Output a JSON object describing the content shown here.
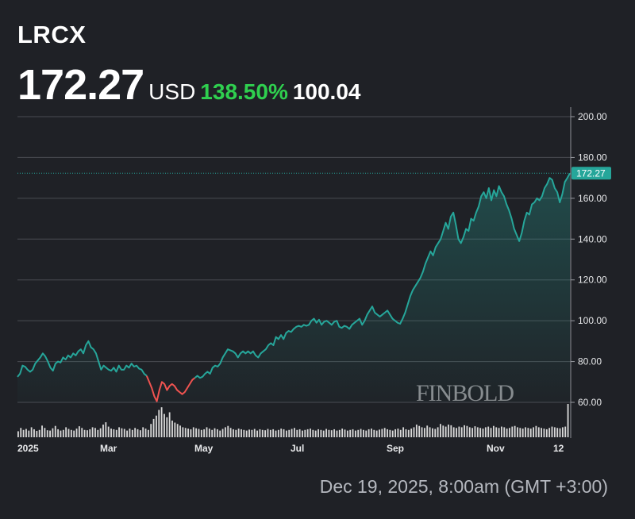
{
  "header": {
    "ticker": "LRCX",
    "price": "172.27",
    "currency": "USD",
    "change_percent": "138.50%",
    "previous_value": "100.04"
  },
  "timestamp": "Dec 19, 2025, 8:00am (GMT +3:00)",
  "watermark": "FINBOLD",
  "colors": {
    "background": "#1f2126",
    "line_up": "#26a69a",
    "line_down": "#ef5350",
    "change_text": "#2fd04f",
    "gridline": "#4a4c52",
    "volume": "#d8d8d8"
  },
  "chart_data": {
    "type": "area",
    "title": "",
    "xlabel": "",
    "ylabel": "",
    "ylim": [
      55,
      205
    ],
    "y_ticks": [
      "200.00",
      "180.00",
      "160.00",
      "140.00",
      "120.00",
      "100.00",
      "80.00",
      "60.00"
    ],
    "x_ticks": [
      "2025",
      "Mar",
      "May",
      "Jul",
      "Sep",
      "Nov",
      "12"
    ],
    "last_value_label": "172.27",
    "grid": true,
    "y_axis_side": "right",
    "series": [
      {
        "values": [
          72.5,
          74,
          78,
          77.5,
          76,
          75,
          76,
          79,
          80.5,
          82,
          84,
          82.5,
          80,
          77,
          75.5,
          79,
          80,
          79.5,
          82,
          81,
          83,
          82,
          84,
          83,
          85,
          86,
          84,
          88,
          90,
          87,
          86,
          84,
          80,
          76,
          78,
          77,
          76,
          75.5,
          77,
          75,
          78,
          76,
          76,
          78,
          77,
          79,
          77.5,
          78,
          76.5,
          76,
          74,
          73,
          70,
          67,
          63,
          60.5,
          66,
          70,
          69,
          66,
          68,
          69,
          68,
          66,
          65,
          64,
          65,
          67,
          69,
          71,
          72,
          73,
          72,
          72.5,
          74,
          75,
          74,
          77,
          78,
          77.5,
          79,
          82,
          84,
          86,
          85.5,
          85,
          84,
          82,
          84,
          85,
          84,
          85,
          84,
          85,
          83,
          82,
          84,
          85,
          86,
          88,
          89,
          88,
          92,
          91,
          93,
          91,
          94,
          95,
          94.5,
          96,
          97,
          97.5,
          97,
          98,
          97.5,
          98,
          100,
          101,
          99,
          100.5,
          98,
          99.5,
          100,
          99,
          98,
          99.5,
          100,
          97,
          96.5,
          97.5,
          97,
          96,
          98,
          99,
          100,
          101,
          98,
          100,
          103,
          105,
          107,
          104,
          103,
          102,
          103,
          104,
          105,
          103,
          101,
          100,
          99,
          98.5,
          101,
          104,
          108,
          112,
          115,
          117,
          119,
          121,
          124,
          128,
          131,
          134,
          132,
          136,
          138,
          140,
          144,
          148,
          145,
          151,
          153,
          147,
          140,
          138,
          141,
          145,
          144,
          150,
          149,
          153,
          156,
          161,
          163,
          160,
          165,
          159,
          164,
          161,
          166,
          163,
          161,
          157,
          154,
          150,
          145,
          142,
          139,
          143,
          149,
          153,
          152,
          157,
          158,
          160,
          159,
          161,
          165,
          167,
          170,
          169,
          165,
          163,
          158,
          162,
          168,
          170,
          172.27
        ]
      }
    ],
    "down_segment_index_range": [
      51,
      70
    ],
    "volume": [
      0.18,
      0.28,
      0.22,
      0.25,
      0.2,
      0.3,
      0.24,
      0.19,
      0.22,
      0.35,
      0.28,
      0.21,
      0.2,
      0.27,
      0.34,
      0.24,
      0.2,
      0.22,
      0.3,
      0.25,
      0.22,
      0.2,
      0.26,
      0.33,
      0.28,
      0.22,
      0.21,
      0.24,
      0.3,
      0.28,
      0.22,
      0.27,
      0.38,
      0.45,
      0.32,
      0.26,
      0.24,
      0.22,
      0.3,
      0.27,
      0.25,
      0.2,
      0.26,
      0.22,
      0.28,
      0.24,
      0.21,
      0.3,
      0.26,
      0.22,
      0.4,
      0.55,
      0.65,
      0.82,
      0.9,
      0.7,
      0.6,
      0.75,
      0.5,
      0.44,
      0.4,
      0.35,
      0.3,
      0.28,
      0.26,
      0.24,
      0.3,
      0.27,
      0.25,
      0.22,
      0.24,
      0.3,
      0.26,
      0.22,
      0.27,
      0.24,
      0.2,
      0.25,
      0.3,
      0.34,
      0.28,
      0.24,
      0.22,
      0.26,
      0.24,
      0.22,
      0.2,
      0.23,
      0.22,
      0.25,
      0.2,
      0.24,
      0.22,
      0.21,
      0.25,
      0.22,
      0.24,
      0.2,
      0.22,
      0.26,
      0.24,
      0.2,
      0.22,
      0.25,
      0.28,
      0.22,
      0.24,
      0.2,
      0.22,
      0.24,
      0.26,
      0.22,
      0.2,
      0.24,
      0.22,
      0.2,
      0.25,
      0.22,
      0.21,
      0.24,
      0.2,
      0.22,
      0.26,
      0.23,
      0.2,
      0.22,
      0.24,
      0.2,
      0.22,
      0.25,
      0.22,
      0.2,
      0.24,
      0.26,
      0.22,
      0.2,
      0.23,
      0.25,
      0.28,
      0.24,
      0.22,
      0.2,
      0.24,
      0.26,
      0.22,
      0.3,
      0.24,
      0.22,
      0.26,
      0.3,
      0.38,
      0.34,
      0.3,
      0.28,
      0.35,
      0.3,
      0.27,
      0.25,
      0.3,
      0.4,
      0.35,
      0.32,
      0.38,
      0.36,
      0.3,
      0.28,
      0.32,
      0.3,
      0.36,
      0.34,
      0.3,
      0.28,
      0.33,
      0.3,
      0.28,
      0.26,
      0.3,
      0.32,
      0.28,
      0.34,
      0.3,
      0.28,
      0.32,
      0.3,
      0.26,
      0.28,
      0.32,
      0.34,
      0.3,
      0.28,
      0.26,
      0.3,
      0.28,
      0.26,
      0.3,
      0.34,
      0.3,
      0.28,
      0.26,
      0.24,
      0.28,
      0.32,
      0.3,
      0.28,
      0.27,
      0.3,
      0.32,
      1.0
    ]
  }
}
